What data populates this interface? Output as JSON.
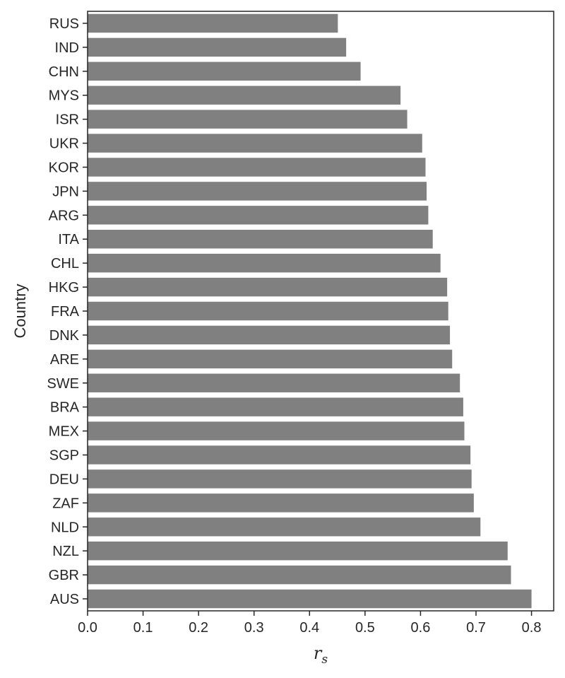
{
  "chart_data": {
    "type": "bar",
    "orientation": "horizontal",
    "title": "",
    "xlabel": "r",
    "xlabel_subscript": "s",
    "ylabel": "Country",
    "xlim": [
      0.0,
      0.84
    ],
    "xticks": [
      "0.0",
      "0.1",
      "0.2",
      "0.3",
      "0.4",
      "0.5",
      "0.6",
      "0.7",
      "0.8"
    ],
    "grid": false,
    "bar_color": "#808080",
    "categories": [
      "RUS",
      "IND",
      "CHN",
      "MYS",
      "ISR",
      "UKR",
      "KOR",
      "JPN",
      "ARG",
      "ITA",
      "CHL",
      "HKG",
      "FRA",
      "DNK",
      "ARE",
      "SWE",
      "BRA",
      "MEX",
      "SGP",
      "DEU",
      "ZAF",
      "NLD",
      "NZL",
      "GBR",
      "AUS"
    ],
    "values": [
      0.451,
      0.466,
      0.492,
      0.564,
      0.576,
      0.603,
      0.609,
      0.611,
      0.614,
      0.622,
      0.636,
      0.648,
      0.65,
      0.653,
      0.657,
      0.671,
      0.677,
      0.679,
      0.69,
      0.692,
      0.696,
      0.708,
      0.757,
      0.763,
      0.8
    ]
  }
}
